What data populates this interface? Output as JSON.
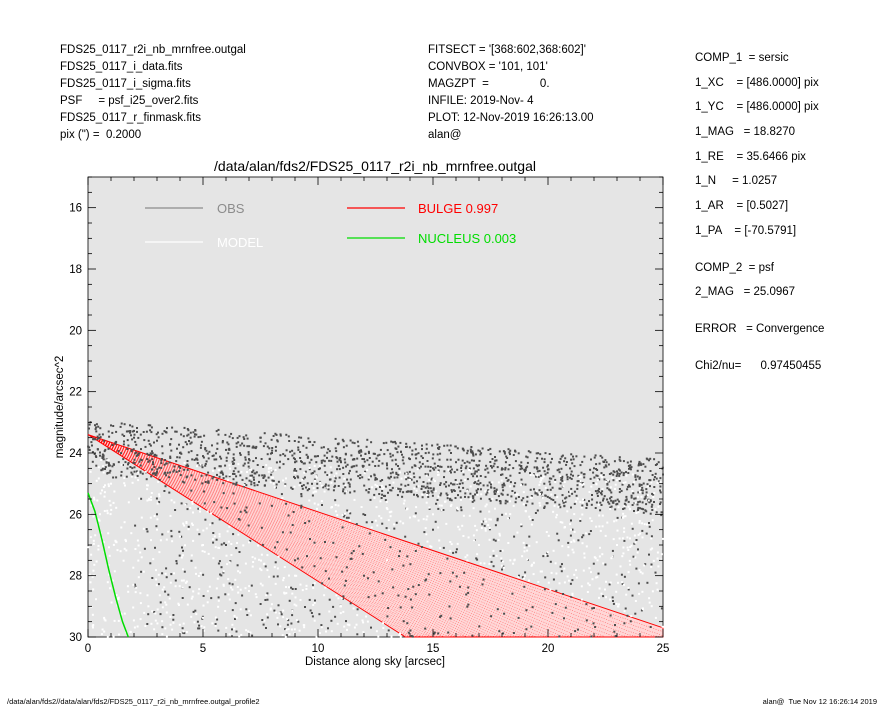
{
  "header_left": [
    "FDS25_0117_r2i_nb_mrnfree.outgal",
    "FDS25_0117_i_data.fits",
    "FDS25_0117_i_sigma.fits",
    "PSF     = psf_i25_over2.fits",
    "FDS25_0117_r_finmask.fits",
    "pix (\") =  0.2000"
  ],
  "header_mid": [
    "FITSECT = '[368:602,368:602]'",
    "CONVBOX = '101, 101'",
    "MAGZPT  =                0.",
    "INFILE: 2019-Nov- 4",
    "PLOT: 12-Nov-2019 16:26:13.00",
    "alan@"
  ],
  "header_right": [
    "COMP_1  = sersic",
    "1_XC    = [486.0000] pix",
    "1_YC    = [486.0000] pix",
    "1_MAG   = 18.8270",
    "1_RE    = 35.6466 pix",
    "1_N     = 1.0257",
    "1_AR    = [0.5027]",
    "1_PA    = [-70.5791]",
    "",
    "COMP_2  = psf",
    "2_MAG   = 25.0967",
    "",
    "ERROR   = Convergence",
    "",
    "Chi2/nu=      0.97450455"
  ],
  "footer_left": "/data/alan/fds2//data/alan/fds2/FDS25_0117_r2i_nb_mrnfree.outgal_profile2",
  "footer_right": "alan@  Tue Nov 12 16:26:14 2019",
  "chart_data": {
    "type": "scatter",
    "title": "/data/alan/fds2/FDS25_0117_r2i_nb_mrnfree.outgal",
    "xlabel": "Distance along sky [arcsec]",
    "ylabel": "magnitude/arcsec^2",
    "xlim": [
      0,
      25
    ],
    "ylim": [
      30,
      15
    ],
    "y_inverted": true,
    "xticks": [
      0,
      5,
      10,
      15,
      20,
      25
    ],
    "yticks": [
      16,
      18,
      20,
      22,
      24,
      26,
      28,
      30
    ],
    "background_color": "#e5e5e5",
    "grid": false,
    "legend_position": "top",
    "legend": [
      {
        "name": "OBS",
        "color": "#8c8c8c"
      },
      {
        "name": "MODEL",
        "color": "#ffffff"
      },
      {
        "name": "BULGE  0.997",
        "color": "#ff0000"
      },
      {
        "name": "NUCLEUS  0.003",
        "color": "#00dd00"
      }
    ],
    "series": [
      {
        "name": "OBS",
        "color": "#4d4d4d",
        "kind": "points",
        "points": [
          [
            0.5,
            23.4
          ],
          [
            0.7,
            23.6
          ],
          [
            0.9,
            23.3
          ],
          [
            1.0,
            23.1
          ],
          [
            1.2,
            23.7
          ],
          [
            1.5,
            23.4
          ],
          [
            2.0,
            23.5
          ],
          [
            2.5,
            23.8
          ],
          [
            3.0,
            23.6
          ],
          [
            4.0,
            24.0
          ],
          [
            5.0,
            24.1
          ],
          [
            6.0,
            23.9
          ],
          [
            7.0,
            24.2
          ],
          [
            8.0,
            24.0
          ],
          [
            9.0,
            24.3
          ],
          [
            10.0,
            24.1
          ],
          [
            11.0,
            24.3
          ],
          [
            12.0,
            24.2
          ],
          [
            13.0,
            24.4
          ],
          [
            14.0,
            24.2
          ],
          [
            15.0,
            24.5
          ],
          [
            16.0,
            24.3
          ],
          [
            17.0,
            24.4
          ],
          [
            18.0,
            24.5
          ],
          [
            19.0,
            24.6
          ],
          [
            20.0,
            24.4
          ],
          [
            21.0,
            24.7
          ],
          [
            22.0,
            24.5
          ],
          [
            23.0,
            24.6
          ],
          [
            24.0,
            24.8
          ],
          [
            25.0,
            24.7
          ],
          [
            3.0,
            26.0
          ],
          [
            6.0,
            27.0
          ],
          [
            9.0,
            27.5
          ],
          [
            12.0,
            28.0
          ],
          [
            15.0,
            26.5
          ],
          [
            18.0,
            27.8
          ],
          [
            21.0,
            26.2
          ],
          [
            24.0,
            25.8
          ]
        ]
      },
      {
        "name": "MODEL",
        "color": "#ffffff",
        "kind": "points",
        "points": [
          [
            1.0,
            25.0
          ],
          [
            3.0,
            26.5
          ],
          [
            5.0,
            27.0
          ],
          [
            7.0,
            28.5
          ],
          [
            9.0,
            28.0
          ],
          [
            11.0,
            29.0
          ],
          [
            13.0,
            27.5
          ],
          [
            15.0,
            26.0
          ],
          [
            17.0,
            27.0
          ],
          [
            19.0,
            28.0
          ],
          [
            21.0,
            26.5
          ],
          [
            23.0,
            27.0
          ],
          [
            25.0,
            26.8
          ]
        ]
      },
      {
        "name": "BULGE  0.997",
        "color": "#ff0000",
        "kind": "band",
        "upper_edge": [
          [
            0,
            23.4
          ],
          [
            25,
            29.7
          ]
        ],
        "lower_edge": [
          [
            0,
            23.4
          ],
          [
            13.8,
            30.0
          ]
        ]
      },
      {
        "name": "NUCLEUS  0.003",
        "color": "#00dd00",
        "kind": "line",
        "points": [
          [
            0.0,
            25.3
          ],
          [
            0.3,
            25.9
          ],
          [
            0.6,
            26.8
          ],
          [
            0.9,
            27.8
          ],
          [
            1.2,
            28.7
          ],
          [
            1.5,
            29.5
          ],
          [
            1.75,
            30.0
          ]
        ]
      }
    ]
  }
}
